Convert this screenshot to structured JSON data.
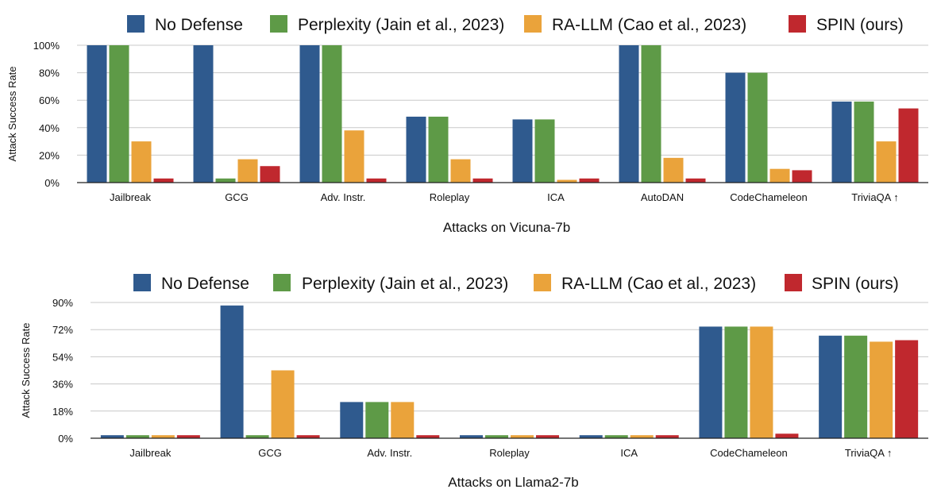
{
  "series_colors": {
    "No Defense": "#2f5a8e",
    "Perplexity (Jain et al., 2023)": "#5e9a47",
    "RA-LLM (Cao et al., 2023)": "#eaa33b",
    "SPIN (ours)": "#c0282e"
  },
  "chart_data": [
    {
      "type": "bar",
      "title": "",
      "xlabel": "Attacks on Vicuna-7b",
      "ylabel": "Attack Success Rate",
      "ylim": [
        0,
        100
      ],
      "yticks": [
        "0%",
        "20%",
        "40%",
        "60%",
        "80%",
        "100%"
      ],
      "yticks_values": [
        0,
        20,
        40,
        60,
        80,
        100
      ],
      "grid": true,
      "legend_position": "top",
      "categories": [
        "Jailbreak",
        "GCG",
        "Adv. Instr.",
        "Roleplay",
        "ICA",
        "AutoDAN",
        "CodeChameleon",
        "TriviaQA ↑"
      ],
      "series": [
        {
          "name": "No Defense",
          "values": [
            100,
            100,
            100,
            48,
            46,
            100,
            80,
            59
          ]
        },
        {
          "name": "Perplexity (Jain et al., 2023)",
          "values": [
            100,
            3,
            100,
            48,
            46,
            100,
            80,
            59
          ]
        },
        {
          "name": "RA-LLM (Cao et al., 2023)",
          "values": [
            30,
            17,
            38,
            17,
            2,
            18,
            10,
            30
          ]
        },
        {
          "name": "SPIN (ours)",
          "values": [
            3,
            12,
            3,
            3,
            3,
            3,
            9,
            54
          ]
        }
      ]
    },
    {
      "type": "bar",
      "title": "",
      "xlabel": "Attacks on Llama2-7b",
      "ylabel": "Attack Success Rate",
      "ylim": [
        0,
        90
      ],
      "yticks": [
        "0%",
        "18%",
        "36%",
        "54%",
        "72%",
        "90%"
      ],
      "yticks_values": [
        0,
        18,
        36,
        54,
        72,
        90
      ],
      "grid": true,
      "legend_position": "top",
      "categories": [
        "Jailbreak",
        "GCG",
        "Adv. Instr.",
        "Roleplay",
        "ICA",
        "CodeChameleon",
        "TriviaQA ↑"
      ],
      "series": [
        {
          "name": "No Defense",
          "values": [
            2,
            88,
            24,
            2,
            2,
            74,
            68
          ]
        },
        {
          "name": "Perplexity (Jain et al., 2023)",
          "values": [
            2,
            2,
            24,
            2,
            2,
            74,
            68
          ]
        },
        {
          "name": "RA-LLM (Cao et al., 2023)",
          "values": [
            2,
            45,
            24,
            2,
            2,
            74,
            64
          ]
        },
        {
          "name": "SPIN (ours)",
          "values": [
            2,
            2,
            2,
            2,
            2,
            3,
            65
          ]
        }
      ]
    }
  ]
}
